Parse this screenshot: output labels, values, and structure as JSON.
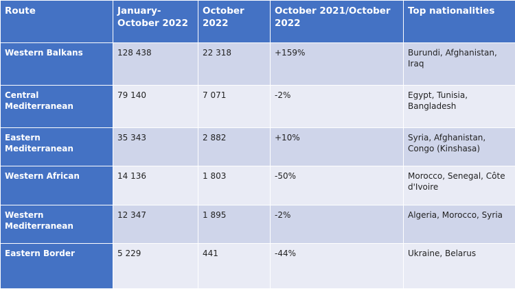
{
  "table": {
    "headers": [
      "Route",
      "January-October 2022",
      "October 2022",
      "October 2021/October 2022",
      "Top nationalities"
    ],
    "rows": [
      {
        "route": "Western Balkans",
        "jan_oct_2022": "128 438",
        "oct_2022": "22 318",
        "change": "+159%",
        "nationalities": "Burundi, Afghanistan, Iraq"
      },
      {
        "route": "Central Mediterranean",
        "jan_oct_2022": "79 140",
        "oct_2022": "7 071",
        "change": "-2%",
        "nationalities": "Egypt, Tunisia, Bangladesh"
      },
      {
        "route": "Eastern Mediterranean",
        "jan_oct_2022": "35 343",
        "oct_2022": "2 882",
        "change": "+10%",
        "nationalities": "Syria, Afghanistan, Congo (Kinshasa)"
      },
      {
        "route": "Western African",
        "jan_oct_2022": "14 136",
        "oct_2022": "1 803",
        "change": "-50%",
        "nationalities": "Morocco, Senegal, Côte d'Ivoire"
      },
      {
        "route": "Western Mediterranean",
        "jan_oct_2022": "12 347",
        "oct_2022": "1 895",
        "change": "-2%",
        "nationalities": "Algeria, Morocco, Syria"
      },
      {
        "route": "Eastern Border",
        "jan_oct_2022": "5 229",
        "oct_2022": "441",
        "change": "-44%",
        "nationalities": "Ukraine, Belarus"
      }
    ]
  },
  "colors": {
    "header_bg": "#4472c4",
    "row_odd_bg": "#cfd5ea",
    "row_even_bg": "#e9ebf5"
  }
}
